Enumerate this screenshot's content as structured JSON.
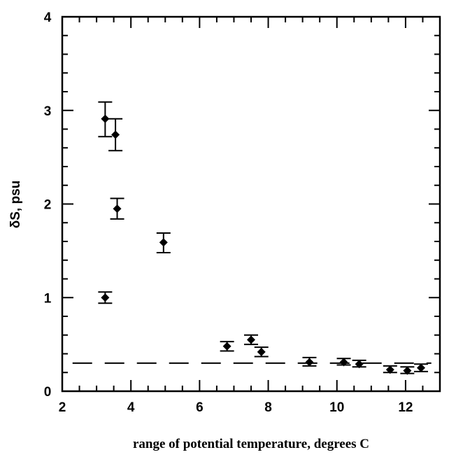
{
  "chart_data": {
    "type": "scatter",
    "title": "",
    "xlabel": "range of potential temperature, degrees C",
    "ylabel": "δS, psu",
    "xlim": [
      2,
      13
    ],
    "ylim": [
      0,
      4
    ],
    "xticks": [
      2,
      4,
      6,
      8,
      10,
      12
    ],
    "yticks": [
      0,
      1,
      2,
      3,
      4
    ],
    "xtick_labels": [
      "2",
      "4",
      "6",
      "8",
      "10",
      "12"
    ],
    "ytick_labels": [
      "0",
      "1",
      "2",
      "3",
      "4"
    ],
    "grid": false,
    "marker": "diamond",
    "reference_line": {
      "y": 0.3,
      "style": "dashed"
    },
    "points": [
      {
        "x": 3.25,
        "y": 2.91,
        "err_low": 2.72,
        "err_high": 3.09
      },
      {
        "x": 3.55,
        "y": 2.74,
        "err_low": 2.57,
        "err_high": 2.91
      },
      {
        "x": 3.6,
        "y": 1.95,
        "err_low": 1.84,
        "err_high": 2.06
      },
      {
        "x": 3.25,
        "y": 1.0,
        "err_low": 0.94,
        "err_high": 1.06
      },
      {
        "x": 4.95,
        "y": 1.59,
        "err_low": 1.48,
        "err_high": 1.69
      },
      {
        "x": 6.8,
        "y": 0.48,
        "err_low": 0.43,
        "err_high": 0.53
      },
      {
        "x": 7.5,
        "y": 0.55,
        "err_low": 0.5,
        "err_high": 0.6
      },
      {
        "x": 7.8,
        "y": 0.42,
        "err_low": 0.37,
        "err_high": 0.47
      },
      {
        "x": 9.2,
        "y": 0.31,
        "err_low": 0.27,
        "err_high": 0.36
      },
      {
        "x": 10.2,
        "y": 0.31,
        "err_low": 0.28,
        "err_high": 0.35
      },
      {
        "x": 10.65,
        "y": 0.29,
        "err_low": 0.26,
        "err_high": 0.33
      },
      {
        "x": 11.55,
        "y": 0.23,
        "err_low": 0.2,
        "err_high": 0.27
      },
      {
        "x": 12.05,
        "y": 0.22,
        "err_low": 0.19,
        "err_high": 0.26
      },
      {
        "x": 12.45,
        "y": 0.25,
        "err_low": 0.21,
        "err_high": 0.29
      }
    ]
  }
}
